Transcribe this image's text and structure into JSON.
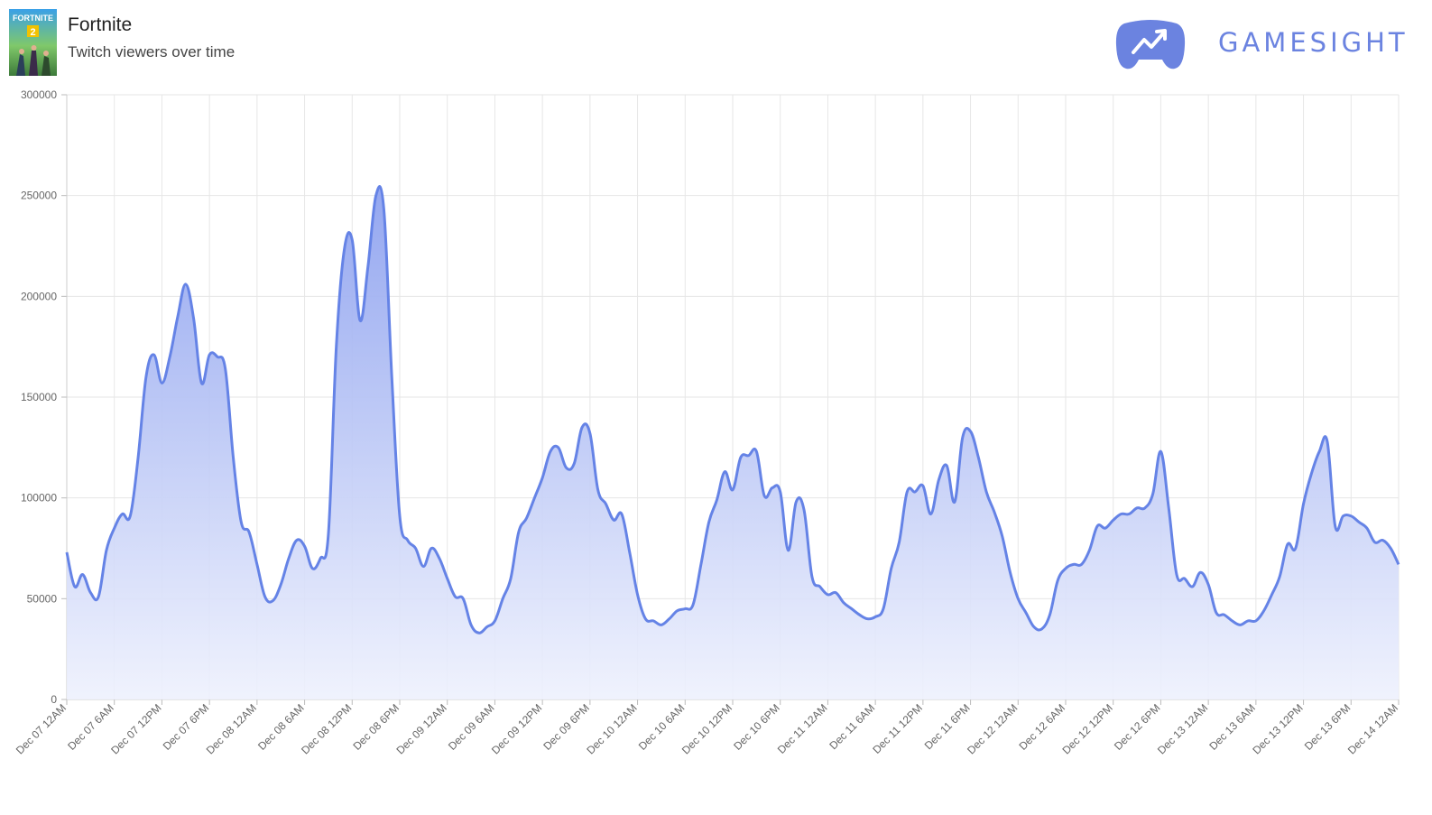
{
  "header": {
    "title": "Fortnite",
    "subtitle": "Twitch viewers over time",
    "brand": "GAMESIGHT",
    "thumb_text": "FORTNITE",
    "thumb_badge": "2"
  },
  "colors": {
    "line": "#6583e6",
    "fill_top": "#8ea2ef",
    "fill_bottom": "#eef1fd",
    "brand": "#6b83e0",
    "grid": "#e6e6e6"
  },
  "chart_data": {
    "type": "area",
    "title": "",
    "xlabel": "",
    "ylabel": "",
    "ylim": [
      0,
      300000
    ],
    "y_ticks": [
      0,
      50000,
      100000,
      150000,
      200000,
      250000,
      300000
    ],
    "grid": true,
    "legend": "none",
    "x_tick_labels": [
      "Dec 07 12AM",
      "Dec 07 6AM",
      "Dec 07 12PM",
      "Dec 07 6PM",
      "Dec 08 12AM",
      "Dec 08 6AM",
      "Dec 08 12PM",
      "Dec 08 6PM",
      "Dec 09 12AM",
      "Dec 09 6AM",
      "Dec 09 12PM",
      "Dec 09 6PM",
      "Dec 10 12AM",
      "Dec 10 6AM",
      "Dec 10 12PM",
      "Dec 10 6PM",
      "Dec 11 12AM",
      "Dec 11 6AM",
      "Dec 11 12PM",
      "Dec 11 6PM",
      "Dec 12 12AM",
      "Dec 12 6AM",
      "Dec 12 12PM",
      "Dec 12 6PM",
      "Dec 13 12AM",
      "Dec 13 6AM",
      "Dec 13 12PM",
      "Dec 13 6PM",
      "Dec 14 12AM"
    ],
    "x_hours": [
      0,
      1,
      2,
      3,
      4,
      5,
      6,
      7,
      8,
      9,
      10,
      11,
      12,
      13,
      14,
      15,
      16,
      17,
      18,
      19,
      20,
      21,
      22,
      23,
      24,
      25,
      26,
      27,
      28,
      29,
      30,
      31,
      32,
      33,
      34,
      35,
      36,
      37,
      38,
      39,
      40,
      41,
      42,
      43,
      44,
      45,
      46,
      47,
      48,
      49,
      50,
      51,
      52,
      53,
      54,
      55,
      56,
      57,
      58,
      59,
      60,
      61,
      62,
      63,
      64,
      65,
      66,
      67,
      68,
      69,
      70,
      71,
      72,
      73,
      74,
      75,
      76,
      77,
      78,
      79,
      80,
      81,
      82,
      83,
      84,
      85,
      86,
      87,
      88,
      89,
      90,
      91,
      92,
      93,
      94,
      95,
      96,
      97,
      98,
      99,
      100,
      101,
      102,
      103,
      104,
      105,
      106,
      107,
      108,
      109,
      110,
      111,
      112,
      113,
      114,
      115,
      116,
      117,
      118,
      119,
      120,
      121,
      122,
      123,
      124,
      125,
      126,
      127,
      128,
      129,
      130,
      131,
      132,
      133,
      134,
      135,
      136,
      137,
      138,
      139,
      140,
      141,
      142,
      143,
      144,
      145,
      146,
      147,
      148,
      149,
      150,
      151,
      152,
      153,
      154,
      155,
      156,
      157,
      158,
      159,
      160,
      161,
      162,
      163,
      164,
      165,
      166,
      167,
      168
    ],
    "series": [
      {
        "values": [
          73000,
          56000,
          62000,
          53000,
          51000,
          74000,
          85000,
          92000,
          91000,
          120000,
          160000,
          171000,
          157000,
          170000,
          190000,
          206000,
          189000,
          157000,
          171000,
          170000,
          164000,
          120000,
          88000,
          83000,
          67000,
          51000,
          49000,
          57000,
          70000,
          79000,
          76000,
          65000,
          70000,
          82000,
          175000,
          223000,
          228000,
          188000,
          215000,
          250000,
          243000,
          160000,
          91000,
          79000,
          75000,
          66000,
          75000,
          70000,
          60000,
          51000,
          50000,
          37000,
          33000,
          36000,
          39000,
          50000,
          60000,
          83000,
          90000,
          100000,
          110000,
          123000,
          125000,
          115000,
          117000,
          135000,
          132000,
          104000,
          97000,
          89000,
          92000,
          73000,
          52000,
          40000,
          39000,
          37000,
          40000,
          44000,
          45000,
          47000,
          67000,
          88000,
          99000,
          113000,
          104000,
          120000,
          121000,
          123000,
          101000,
          105000,
          103000,
          74000,
          98000,
          94000,
          61000,
          56000,
          52000,
          53000,
          48000,
          45000,
          42000,
          40000,
          41000,
          45000,
          65000,
          78000,
          103000,
          103000,
          106000,
          92000,
          109000,
          116000,
          98000,
          130000,
          133000,
          120000,
          103000,
          93000,
          81000,
          63000,
          50000,
          43000,
          36000,
          35000,
          42000,
          59000,
          65000,
          67000,
          67000,
          74000,
          86000,
          85000,
          89000,
          92000,
          92000,
          95000,
          95000,
          102000,
          123000,
          95000,
          62000,
          60000,
          56000,
          63000,
          57000,
          43000,
          42000,
          39000,
          37000,
          39000,
          39000,
          44000,
          52000,
          61000,
          77000,
          75000,
          97000,
          112000,
          123000,
          128000,
          86000,
          91000,
          91000,
          88000,
          85000,
          78000,
          79000,
          75000,
          67000
        ]
      }
    ]
  }
}
